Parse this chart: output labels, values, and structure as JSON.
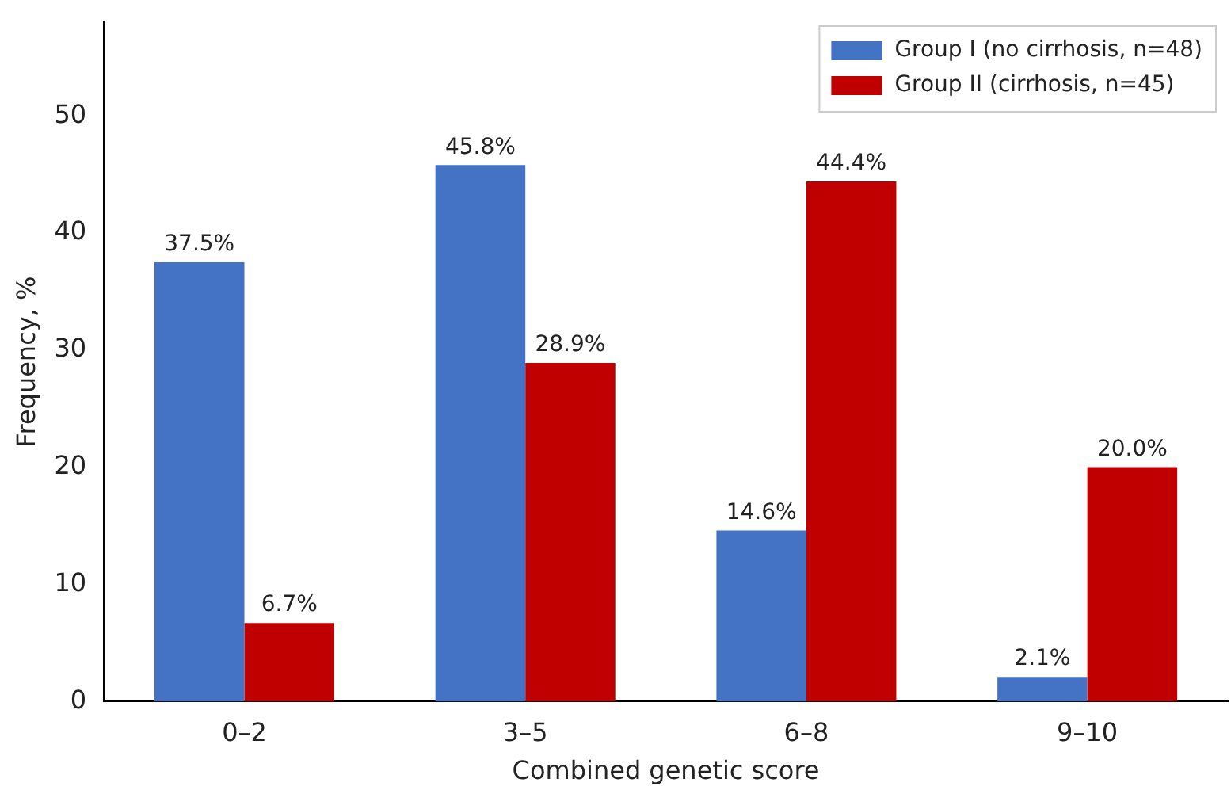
{
  "chart_data": {
    "type": "bar",
    "xlabel": "Combined genetic score",
    "ylabel": "Frequency, %",
    "categories": [
      "0–2",
      "3–5",
      "6–8",
      "9–10"
    ],
    "series": [
      {
        "name": "Group I (no cirrhosis, n=48)",
        "color": "#4472c4",
        "values": [
          37.5,
          45.8,
          14.6,
          2.1
        ],
        "value_labels": [
          "37.5%",
          "45.8%",
          "14.6%",
          "2.1%"
        ]
      },
      {
        "name": "Group II (cirrhosis, n=45)",
        "color": "#c00000",
        "values": [
          6.7,
          28.9,
          44.4,
          20.0
        ],
        "value_labels": [
          "6.7%",
          "28.9%",
          "44.4%",
          "20.0%"
        ]
      }
    ],
    "ylim": [
      0,
      58
    ],
    "yticks": [
      0,
      10,
      20,
      30,
      40,
      50
    ],
    "grid": false,
    "legend": "top right"
  }
}
